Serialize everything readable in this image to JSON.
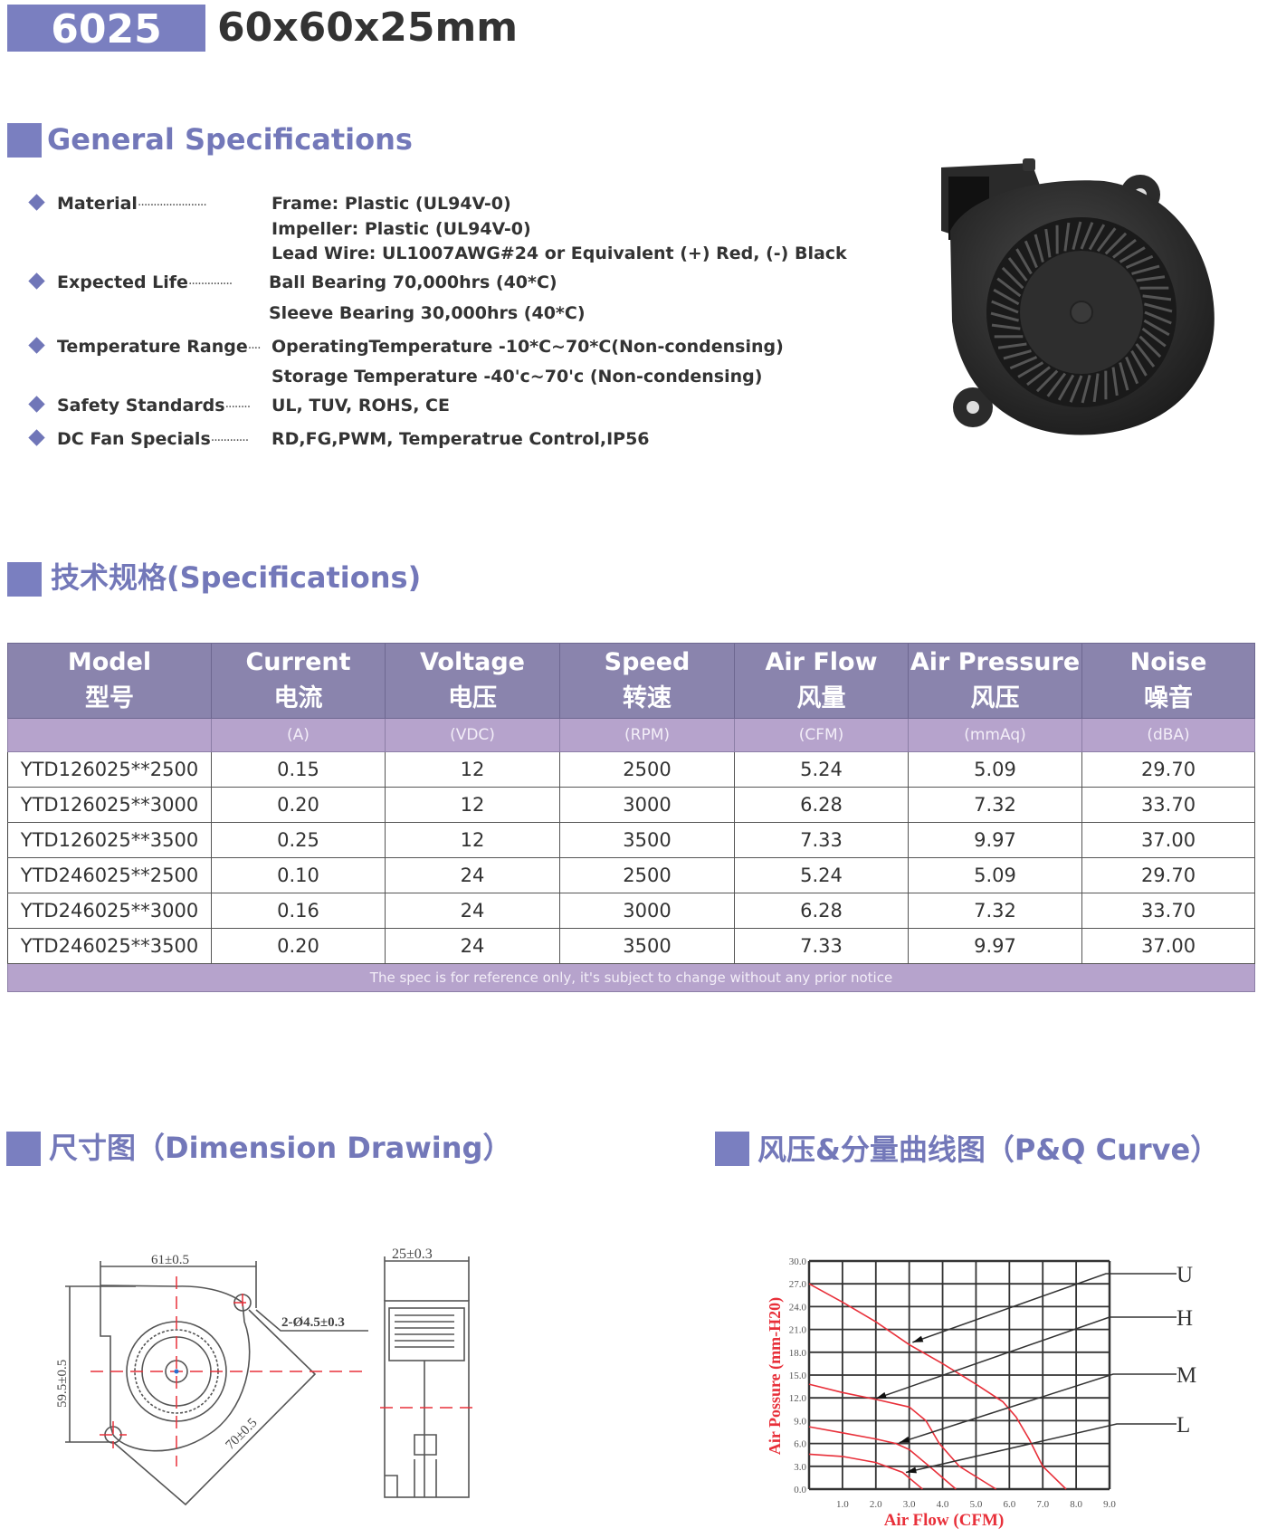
{
  "header": {
    "model": "6025",
    "dimensions": "60x60x25mm"
  },
  "general": {
    "title": "General Specifications",
    "items": [
      {
        "label": "Material",
        "values": [
          "Frame: Plastic (UL94V-0)",
          "Impeller: Plastic (UL94V-0)",
          "Lead Wire: UL1007AWG#24 or Equivalent (+) Red, (-) Black"
        ]
      },
      {
        "label": "Expected Life",
        "values": [
          "Ball Bearing 70,000hrs (40*C)",
          "Sleeve Bearing 30,000hrs (40*C)"
        ]
      },
      {
        "label": "Temperature Range",
        "values": [
          "OperatingTemperature -10*C~70*C(Non-condensing)",
          "Storage Temperature -40'c~70'c (Non-condensing)"
        ]
      },
      {
        "label": "Safety Standards",
        "values": [
          "UL, TUV, ROHS, CE"
        ]
      },
      {
        "label": "DC Fan Specials",
        "values": [
          "RD,FG,PWM, Temperatrue Control,IP56"
        ]
      }
    ]
  },
  "specs": {
    "title": "技术规格(Specifications)",
    "columns": [
      {
        "en": "Model",
        "zh": "型号",
        "unit": ""
      },
      {
        "en": "Current",
        "zh": "电流",
        "unit": "(A)"
      },
      {
        "en": "Voltage",
        "zh": "电压",
        "unit": "(VDC)"
      },
      {
        "en": "Speed",
        "zh": "转速",
        "unit": "(RPM)"
      },
      {
        "en": "Air Flow",
        "zh": "风量",
        "unit": "(CFM)"
      },
      {
        "en": "Air Pressure",
        "zh": "风压",
        "unit": "(mmAq)"
      },
      {
        "en": "Noise",
        "zh": "噪音",
        "unit": "(dBA)"
      }
    ],
    "rows": [
      [
        "YTD126025**2500",
        "0.15",
        "12",
        "2500",
        "5.24",
        "5.09",
        "29.70"
      ],
      [
        "YTD126025**3000",
        "0.20",
        "12",
        "3000",
        "6.28",
        "7.32",
        "33.70"
      ],
      [
        "YTD126025**3500",
        "0.25",
        "12",
        "3500",
        "7.33",
        "9.97",
        "37.00"
      ],
      [
        "YTD246025**2500",
        "0.10",
        "24",
        "2500",
        "5.24",
        "5.09",
        "29.70"
      ],
      [
        "YTD246025**3000",
        "0.16",
        "24",
        "3000",
        "6.28",
        "7.32",
        "33.70"
      ],
      [
        "YTD246025**3500",
        "0.20",
        "24",
        "3500",
        "7.33",
        "9.97",
        "37.00"
      ]
    ],
    "footnote": "The spec is for reference only, it's subject to change without any prior notice"
  },
  "dimension": {
    "title": "尺寸图（Dimension Drawing）",
    "width_label": "61±0.5",
    "height_label": "59.5±0.5",
    "diagonal_label": "70±0.5",
    "hole_label": "2-Ø4.5±0.3",
    "depth_label": "25±0.3"
  },
  "pq": {
    "title": "风压&分量曲线图（P&Q Curve）"
  },
  "colors": {
    "accent": "#7a7fc0",
    "table_header": "#8a84ad",
    "table_unit_row": "#b6a3cc",
    "curve": "#e8303a"
  },
  "chart_data": {
    "type": "line",
    "xlabel": "Air Flow (CFM)",
    "ylabel": "Air Possure (mm-H20)",
    "xlim": [
      0,
      9
    ],
    "ylim": [
      0,
      30
    ],
    "xticks": [
      "1.0",
      "2.0",
      "3.0",
      "4.0",
      "5.0",
      "6.0",
      "7.0",
      "8.0",
      "9.0"
    ],
    "yticks": [
      "0.0",
      "3.0",
      "6.0",
      "9.0",
      "12.0",
      "15.0",
      "18.0",
      "21.0",
      "24.0",
      "27.0",
      "30.0"
    ],
    "grid": true,
    "series": [
      {
        "name": "U",
        "x": [
          0,
          1,
          2,
          3,
          4,
          5,
          5.8,
          6.2,
          6.6,
          7,
          7.7
        ],
        "y": [
          27,
          24.6,
          22,
          19,
          16.5,
          13.8,
          11.5,
          9.5,
          6.5,
          3,
          0
        ],
        "pointer": [
          3.1,
          19.3
        ]
      },
      {
        "name": "H",
        "x": [
          0,
          1,
          2,
          3,
          3.5,
          3.9,
          4.5,
          5.6
        ],
        "y": [
          13.8,
          12.7,
          11.8,
          10.8,
          9,
          6,
          3,
          0
        ],
        "pointer": [
          2.0,
          11.9
        ]
      },
      {
        "name": "M",
        "x": [
          0,
          1,
          2,
          2.6,
          3,
          3.6,
          4.4
        ],
        "y": [
          8.2,
          7.4,
          6.6,
          6,
          5.2,
          3,
          0
        ],
        "pointer": [
          2.7,
          6.1
        ]
      },
      {
        "name": "L",
        "x": [
          0,
          1,
          2,
          2.8,
          3.4
        ],
        "y": [
          4.6,
          4.3,
          3.5,
          2.2,
          0
        ],
        "pointer": [
          2.9,
          2.2
        ]
      }
    ]
  }
}
